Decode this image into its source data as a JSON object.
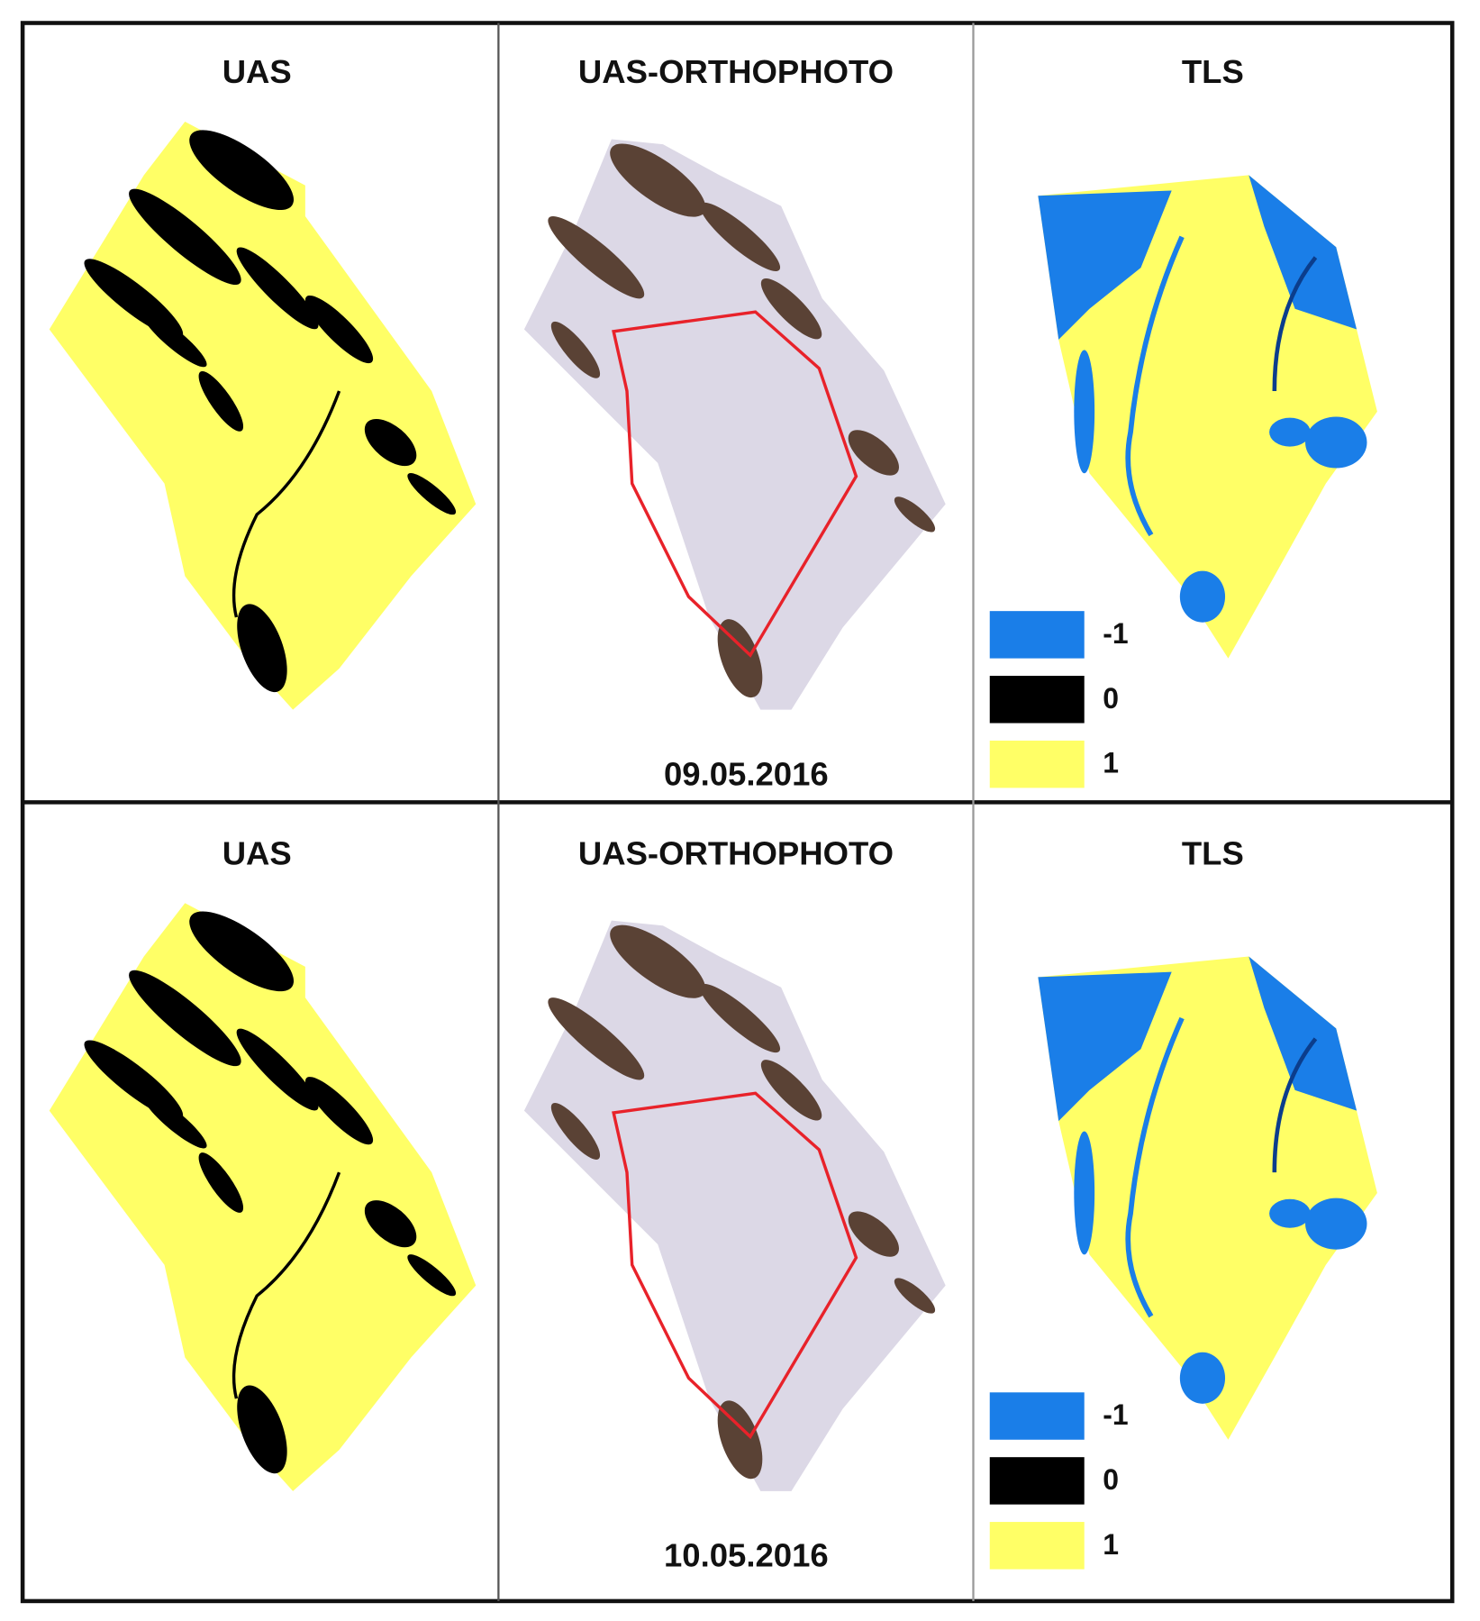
{
  "rows": [
    {
      "titles": [
        "UAS",
        "UAS-ORTHOPHOTO",
        "TLS"
      ],
      "date": "09.05.2016",
      "legend": [
        {
          "label": "-1",
          "color": "#1a7ee8"
        },
        {
          "label": "0",
          "color": "#000000"
        },
        {
          "label": "1",
          "color": "#ffff66"
        }
      ]
    },
    {
      "titles": [
        "UAS",
        "UAS-ORTHOPHOTO",
        "TLS"
      ],
      "date": "10.05.2016",
      "legend": [
        {
          "label": "-1",
          "color": "#1a7ee8"
        },
        {
          "label": "0",
          "color": "#000000"
        },
        {
          "label": "1",
          "color": "#ffff66"
        }
      ]
    }
  ]
}
